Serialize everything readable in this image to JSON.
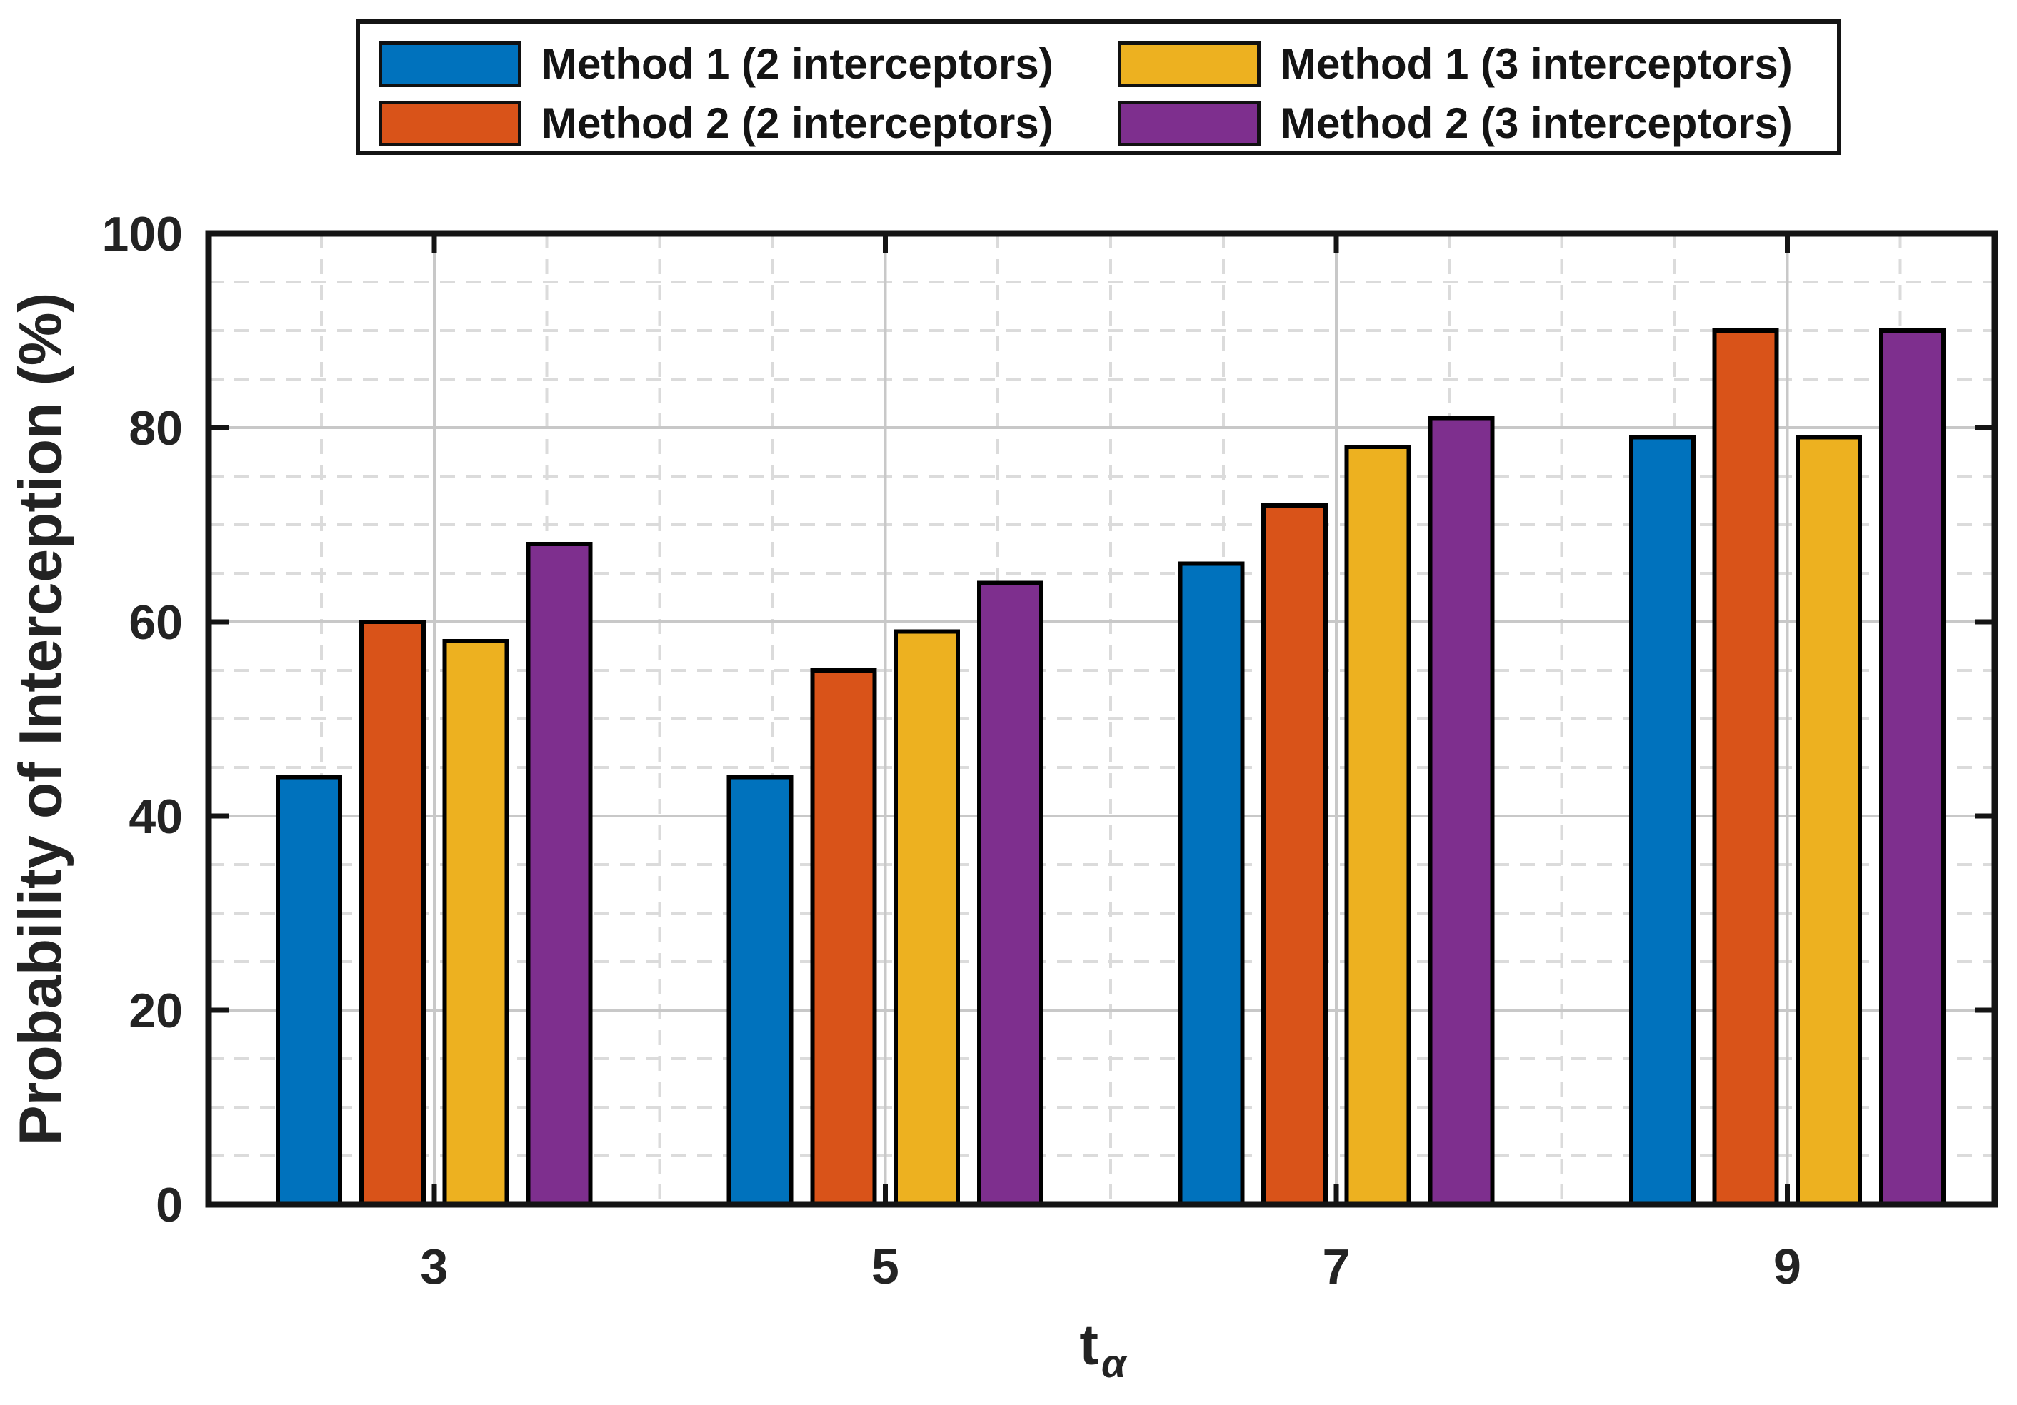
{
  "figure": {
    "ylabel": "Probability of Interception (%)",
    "xlabel_base": "t",
    "xlabel_subscript": "α"
  },
  "legend": {
    "items": [
      {
        "label": "Method 1 (2 interceptors)",
        "color": "#0072BD"
      },
      {
        "label": "Method 2 (2 interceptors)",
        "color": "#D95319"
      },
      {
        "label": "Method 1 (3 interceptors)",
        "color": "#EDB120"
      },
      {
        "label": "Method 2 (3 interceptors)",
        "color": "#7E2F8E"
      }
    ]
  },
  "chart_data": {
    "type": "bar",
    "title": "",
    "xlabel": "t_α",
    "ylabel": "Probability of Interception (%)",
    "categories": [
      "3",
      "5",
      "7",
      "9"
    ],
    "x_tick_values": [
      3,
      5,
      7,
      9
    ],
    "series": [
      {
        "name": "Method 1 (2 interceptors)",
        "color": "#0072BD",
        "values": [
          44,
          44,
          66,
          79
        ]
      },
      {
        "name": "Method 2 (2 interceptors)",
        "color": "#D95319",
        "values": [
          60,
          55,
          72,
          90
        ]
      },
      {
        "name": "Method 1 (3 interceptors)",
        "color": "#EDB120",
        "values": [
          58,
          59,
          78,
          79
        ]
      },
      {
        "name": "Method 2 (3 interceptors)",
        "color": "#7E2F8E",
        "values": [
          68,
          64,
          81,
          90
        ]
      }
    ],
    "ylim": [
      0,
      100
    ],
    "y_ticks": [
      0,
      20,
      40,
      60,
      80,
      100
    ],
    "y_minor_step": 5,
    "xlim": [
      2,
      9.92
    ],
    "x_minor_step": 0.5,
    "grid": "major solid + minor dashed, both axes",
    "legend_position": "top outside, 2 columns",
    "colors": {
      "major_grid": "#c8c8c8",
      "minor_grid": "#dbdbdb",
      "axis_box": "#141414",
      "bar_edge": "#000000",
      "tick_label": "#232323"
    }
  }
}
